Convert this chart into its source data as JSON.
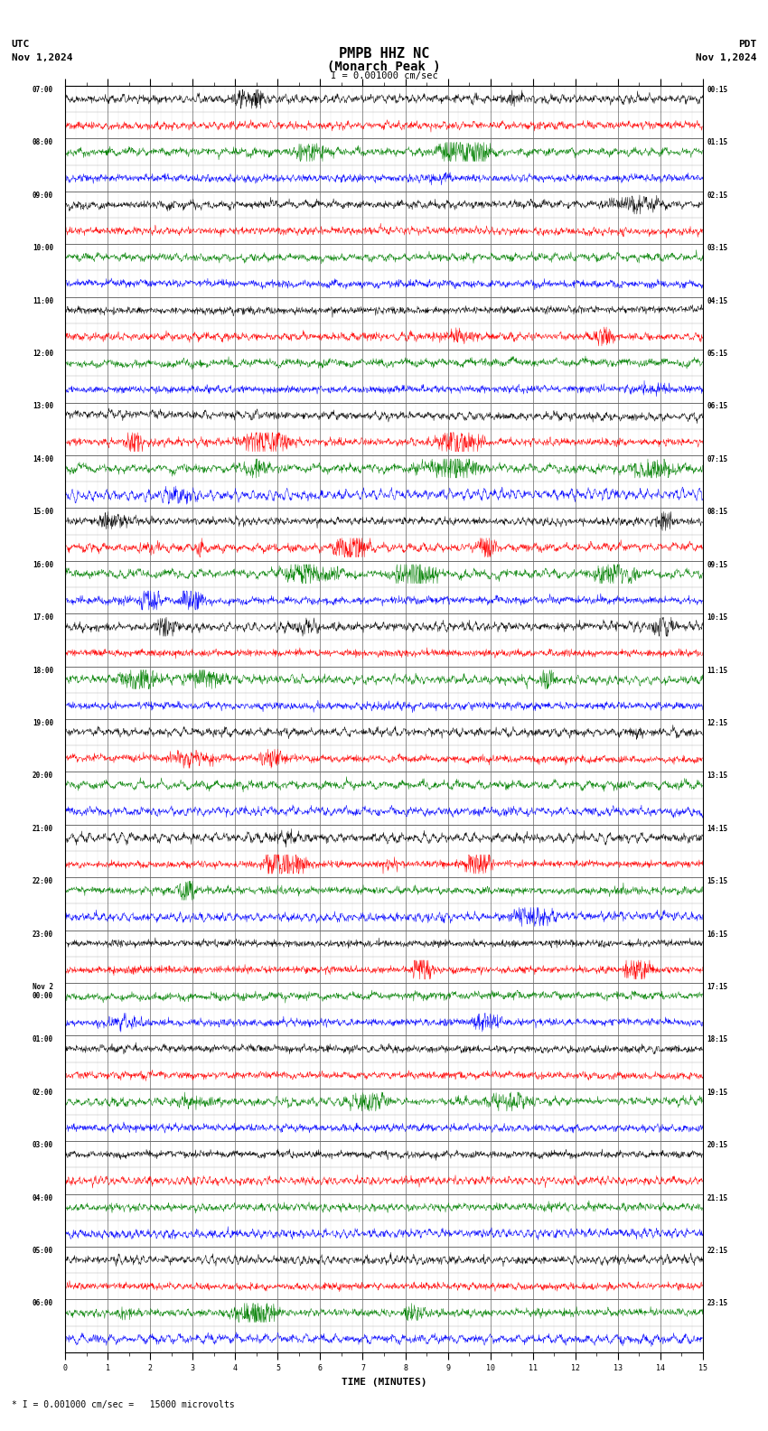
{
  "title_line1": "PMPB HHZ NC",
  "title_line2": "(Monarch Peak )",
  "scale_label": "I = 0.001000 cm/sec",
  "utc_label": "UTC",
  "pdt_label": "PDT",
  "date_left": "Nov 1,2024",
  "date_right": "Nov 1,2024",
  "bottom_label": "* I = 0.001000 cm/sec =   15000 microvolts",
  "xlabel": "TIME (MINUTES)",
  "bg_color": "#ffffff",
  "trace_colors": [
    "#000000",
    "#ff0000",
    "#008000",
    "#0000ff"
  ],
  "grid_color": "#888888",
  "n_rows": 48,
  "n_minutes": 15,
  "left_times_utc": [
    "07:00",
    "",
    "08:00",
    "",
    "09:00",
    "",
    "10:00",
    "",
    "11:00",
    "",
    "12:00",
    "",
    "13:00",
    "",
    "14:00",
    "",
    "15:00",
    "",
    "16:00",
    "",
    "17:00",
    "",
    "18:00",
    "",
    "19:00",
    "",
    "20:00",
    "",
    "21:00",
    "",
    "22:00",
    "",
    "23:00",
    "",
    "Nov 2\n00:00",
    "",
    "01:00",
    "",
    "02:00",
    "",
    "03:00",
    "",
    "04:00",
    "",
    "05:00",
    "",
    "06:00",
    ""
  ],
  "right_times_pdt": [
    "00:15",
    "",
    "01:15",
    "",
    "02:15",
    "",
    "03:15",
    "",
    "04:15",
    "",
    "05:15",
    "",
    "06:15",
    "",
    "07:15",
    "",
    "08:15",
    "",
    "09:15",
    "",
    "10:15",
    "",
    "11:15",
    "",
    "12:15",
    "",
    "13:15",
    "",
    "14:15",
    "",
    "15:15",
    "",
    "16:15",
    "",
    "17:15",
    "",
    "18:15",
    "",
    "19:15",
    "",
    "20:15",
    "",
    "21:15",
    "",
    "22:15",
    "",
    "23:15",
    ""
  ],
  "n_samples": 1800,
  "amplitude_scale": 0.38,
  "font_size_title": 10,
  "font_size_labels": 7,
  "font_size_ticks": 6.0
}
